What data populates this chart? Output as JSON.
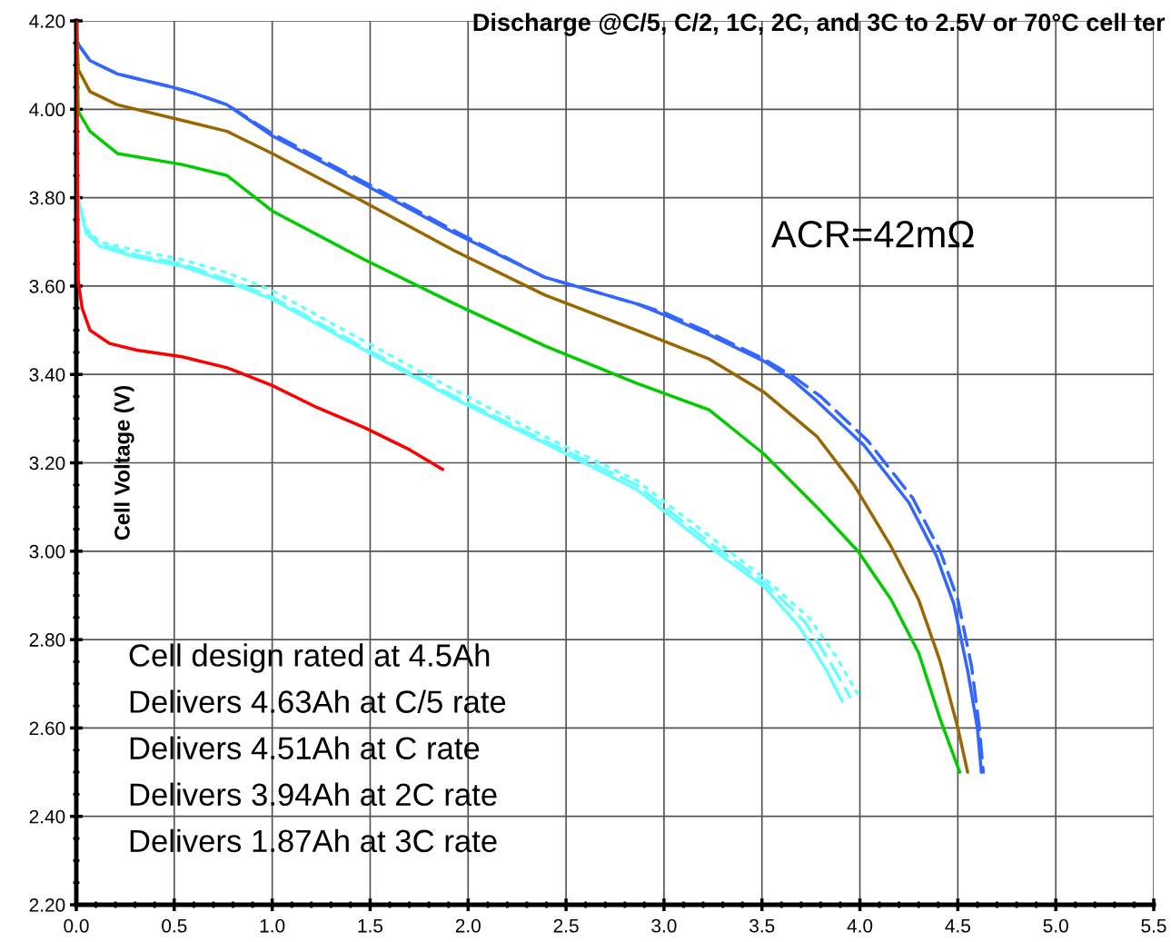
{
  "chart_data": {
    "type": "line",
    "title": "Discharge @C/5, C/2, 1C, 2C, and 3C to 2.5V or 70°C cell ter",
    "ylabel": "Cell Voltage (V)",
    "xlim": [
      0.0,
      5.5
    ],
    "ylim": [
      2.2,
      4.2
    ],
    "xticks": [
      {
        "value": 0,
        "label": "0.0"
      },
      {
        "value": 0.5,
        "label": "0.5"
      },
      {
        "value": 1,
        "label": "1.0"
      },
      {
        "value": 1.5,
        "label": "1.5"
      },
      {
        "value": 2,
        "label": "2.0"
      },
      {
        "value": 2.5,
        "label": "2.5"
      },
      {
        "value": 3,
        "label": "3.0"
      },
      {
        "value": 3.5,
        "label": "3.5"
      },
      {
        "value": 4,
        "label": "4.0"
      },
      {
        "value": 4.5,
        "label": "4.5"
      },
      {
        "value": 5,
        "label": "5.0"
      },
      {
        "value": 5.5,
        "label": "5.5"
      }
    ],
    "yticks": [
      {
        "value": 2.2,
        "label": "2.20"
      },
      {
        "value": 2.4,
        "label": "2.40"
      },
      {
        "value": 2.6,
        "label": "2.60"
      },
      {
        "value": 2.8,
        "label": "2.80"
      },
      {
        "value": 3.0,
        "label": "3.00"
      },
      {
        "value": 3.2,
        "label": "3.20"
      },
      {
        "value": 3.4,
        "label": "3.40"
      },
      {
        "value": 3.6,
        "label": "3.60"
      },
      {
        "value": 3.8,
        "label": "3.80"
      },
      {
        "value": 4.0,
        "label": "4.00"
      },
      {
        "value": 4.2,
        "label": "4.20"
      }
    ],
    "grid": true,
    "legend": false,
    "marker": "none",
    "annotations": [
      "ACR=42mΩ",
      "Cell design rated at 4.5Ah",
      "Delivers 4.63Ah at C/5 rate",
      "Delivers 4.51Ah at C rate",
      "Delivers 3.94Ah at 2C rate",
      "Delivers 1.87Ah at 3C rate"
    ],
    "series": [
      {
        "color": "#3366ff",
        "line_style": "solid",
        "x": [
          0.005,
          0.07,
          0.21,
          0.49,
          0.61,
          0.77,
          1.0,
          1.47,
          1.93,
          2.39,
          2.86,
          3.0,
          3.23,
          3.51,
          3.65,
          3.78,
          4.02,
          4.25,
          4.39,
          4.48,
          4.55,
          4.6,
          4.62
        ],
        "values": [
          4.15,
          4.11,
          4.08,
          4.05,
          4.035,
          4.01,
          3.94,
          3.83,
          3.72,
          3.62,
          3.56,
          3.535,
          3.49,
          3.43,
          3.39,
          3.34,
          3.24,
          3.11,
          2.99,
          2.88,
          2.73,
          2.6,
          2.5
        ]
      },
      {
        "color": "#3366ff",
        "line_style": "dashed",
        "x": [
          0.005,
          0.07,
          0.21,
          0.49,
          0.61,
          0.77,
          1.0,
          1.47,
          1.93,
          2.39,
          2.86,
          3.0,
          3.23,
          3.51,
          3.66,
          3.8,
          4.04,
          4.27,
          4.41,
          4.5,
          4.57,
          4.61,
          4.63
        ],
        "values": [
          4.15,
          4.11,
          4.08,
          4.05,
          4.035,
          4.01,
          3.945,
          3.835,
          3.725,
          3.62,
          3.56,
          3.54,
          3.495,
          3.435,
          3.395,
          3.35,
          3.25,
          3.12,
          3.0,
          2.89,
          2.74,
          2.6,
          2.5
        ]
      },
      {
        "color": "#996600",
        "line_style": "solid",
        "x": [
          0,
          0.01,
          0.07,
          0.21,
          0.54,
          0.77,
          1.0,
          1.47,
          1.93,
          2.39,
          2.86,
          3.23,
          3.51,
          3.78,
          3.97,
          4.16,
          4.3,
          4.41,
          4.5,
          4.55
        ],
        "values": [
          4.2,
          4.09,
          4.04,
          4.01,
          3.975,
          3.95,
          3.9,
          3.79,
          3.68,
          3.58,
          3.5,
          3.435,
          3.36,
          3.26,
          3.15,
          3.01,
          2.89,
          2.75,
          2.6,
          2.5
        ]
      },
      {
        "color": "#00cc00",
        "line_style": "solid",
        "x": [
          0,
          0.01,
          0.07,
          0.21,
          0.54,
          0.77,
          1.0,
          1.47,
          1.93,
          2.39,
          2.86,
          3.23,
          3.51,
          3.78,
          3.99,
          4.16,
          4.3,
          4.41,
          4.51
        ],
        "values": [
          4.2,
          3.995,
          3.95,
          3.9,
          3.875,
          3.85,
          3.77,
          3.66,
          3.56,
          3.465,
          3.38,
          3.32,
          3.22,
          3.1,
          3.0,
          2.89,
          2.77,
          2.62,
          2.5
        ]
      },
      {
        "color": "#66ffff",
        "line_style": "solid",
        "x": [
          0.01,
          0.05,
          0.12,
          0.31,
          0.54,
          0.77,
          1.0,
          1.47,
          1.93,
          2.39,
          2.86,
          3.23,
          3.51,
          3.69,
          3.83,
          3.91
        ],
        "values": [
          3.795,
          3.72,
          3.69,
          3.665,
          3.645,
          3.61,
          3.57,
          3.455,
          3.345,
          3.245,
          3.14,
          3.01,
          2.92,
          2.83,
          2.73,
          2.66
        ]
      },
      {
        "color": "#66ffff",
        "line_style": "dashed",
        "x": [
          0.01,
          0.05,
          0.12,
          0.31,
          0.54,
          0.77,
          1.0,
          1.47,
          1.93,
          2.39,
          2.86,
          3.23,
          3.51,
          3.72,
          3.86,
          3.95
        ],
        "values": [
          3.795,
          3.725,
          3.695,
          3.67,
          3.65,
          3.615,
          3.575,
          3.46,
          3.35,
          3.25,
          3.15,
          3.02,
          2.93,
          2.84,
          2.74,
          2.67
        ]
      },
      {
        "color": "#66ffff",
        "line_style": "dotted",
        "x": [
          0.01,
          0.05,
          0.12,
          0.31,
          0.54,
          0.77,
          1.0,
          1.47,
          1.93,
          2.39,
          2.86,
          3.23,
          3.51,
          3.74,
          3.88,
          4.0
        ],
        "values": [
          3.8,
          3.73,
          3.7,
          3.68,
          3.66,
          3.63,
          3.59,
          3.475,
          3.365,
          3.26,
          3.16,
          3.035,
          2.94,
          2.85,
          2.76,
          2.67
        ]
      },
      {
        "color": "#ff0000",
        "line_style": "solid",
        "x": [
          0,
          0.01,
          0.03,
          0.07,
          0.17,
          0.31,
          0.54,
          0.77,
          1.0,
          1.23,
          1.47,
          1.7,
          1.87
        ],
        "values": [
          4.2,
          3.61,
          3.55,
          3.5,
          3.47,
          3.455,
          3.44,
          3.415,
          3.375,
          3.325,
          3.28,
          3.23,
          3.185
        ]
      }
    ]
  }
}
